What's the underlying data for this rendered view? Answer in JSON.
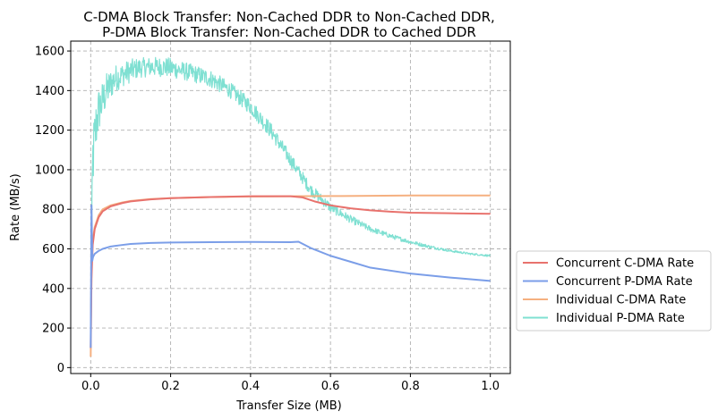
{
  "chart_data": {
    "type": "line",
    "title_lines": [
      "C-DMA Block Transfer: Non-Cached DDR to Non-Cached DDR,",
      "P-DMA Block Transfer: Non-Cached DDR to Cached DDR"
    ],
    "xlabel": "Transfer Size (MB)",
    "ylabel": "Rate (MB/s)",
    "xlim": [
      -0.05,
      1.05
    ],
    "ylim": [
      -30,
      1650
    ],
    "xticks": [
      0.0,
      0.2,
      0.4,
      0.6,
      0.8,
      1.0
    ],
    "xtick_labels": [
      "0.0",
      "0.2",
      "0.4",
      "0.6",
      "0.8",
      "1.0"
    ],
    "yticks": [
      0,
      200,
      400,
      600,
      800,
      1000,
      1200,
      1400,
      1600
    ],
    "ytick_labels": [
      "0",
      "200",
      "400",
      "600",
      "800",
      "1000",
      "1200",
      "1400",
      "1600"
    ],
    "grid": true,
    "legend_position": "outside-right-bottom",
    "series": [
      {
        "name": "Concurrent C-DMA Rate",
        "color": "#e8726d",
        "x": [
          0.0,
          0.002,
          0.005,
          0.01,
          0.02,
          0.03,
          0.05,
          0.08,
          0.1,
          0.15,
          0.2,
          0.3,
          0.4,
          0.5,
          0.53,
          0.56,
          0.6,
          0.65,
          0.7,
          0.75,
          0.8,
          0.9,
          1.0
        ],
        "y": [
          100,
          450,
          620,
          700,
          760,
          790,
          815,
          832,
          840,
          850,
          856,
          862,
          866,
          866,
          860,
          840,
          820,
          805,
          795,
          788,
          783,
          780,
          777
        ]
      },
      {
        "name": "Concurrent P-DMA Rate",
        "color": "#7b9ee8",
        "x": [
          0.0,
          0.002,
          0.004,
          0.006,
          0.01,
          0.02,
          0.03,
          0.05,
          0.08,
          0.1,
          0.15,
          0.2,
          0.3,
          0.4,
          0.5,
          0.52,
          0.55,
          0.6,
          0.65,
          0.7,
          0.8,
          0.9,
          1.0
        ],
        "y": [
          100,
          820,
          540,
          560,
          575,
          590,
          600,
          612,
          620,
          625,
          630,
          632,
          634,
          635,
          634,
          636,
          605,
          565,
          535,
          505,
          475,
          455,
          438
        ]
      },
      {
        "name": "Individual C-DMA Rate",
        "color": "#f5b080",
        "x": [
          0.0,
          0.002,
          0.005,
          0.01,
          0.02,
          0.03,
          0.05,
          0.08,
          0.1,
          0.15,
          0.2,
          0.3,
          0.4,
          0.5,
          0.6,
          0.7,
          0.8,
          0.9,
          1.0
        ],
        "y": [
          55,
          500,
          640,
          710,
          770,
          800,
          820,
          835,
          842,
          852,
          856,
          862,
          865,
          866,
          867,
          868,
          870,
          870,
          870
        ]
      },
      {
        "name": "Individual P-DMA Rate",
        "color": "#7fe0d2",
        "x": [
          0.0,
          0.005,
          0.01,
          0.015,
          0.02,
          0.03,
          0.04,
          0.05,
          0.06,
          0.08,
          0.1,
          0.12,
          0.15,
          0.18,
          0.2,
          0.25,
          0.3,
          0.35,
          0.4,
          0.45,
          0.5,
          0.55,
          0.6,
          0.65,
          0.7,
          0.75,
          0.8,
          0.85,
          0.9,
          0.95,
          1.0
        ],
        "y": [
          300,
          1050,
          1150,
          1250,
          1300,
          1350,
          1400,
          1430,
          1460,
          1480,
          1500,
          1515,
          1520,
          1520,
          1515,
          1490,
          1460,
          1400,
          1320,
          1200,
          1050,
          900,
          810,
          750,
          700,
          665,
          635,
          610,
          590,
          575,
          565
        ],
        "noise_amplitude": [
          0,
          180,
          160,
          140,
          120,
          100,
          90,
          80,
          70,
          60,
          60,
          50,
          50,
          50,
          50,
          45,
          45,
          40,
          40,
          40,
          35,
          30,
          25,
          20,
          15,
          12,
          10,
          8,
          6,
          5,
          5
        ]
      }
    ]
  }
}
